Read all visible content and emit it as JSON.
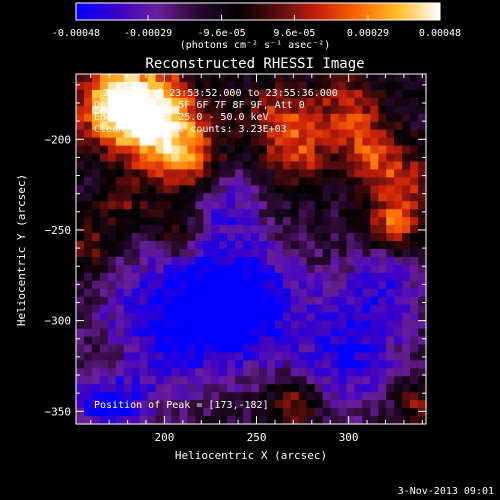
{
  "colorbar": {
    "tick_labels": [
      "-0.00048",
      "-0.00029",
      "-9.6e-05",
      "9.6e-05",
      "0.00029",
      "0.00048"
    ],
    "tick_values": [
      -0.00048,
      -0.00029,
      -9.6e-05,
      9.6e-05,
      0.00029,
      0.00048
    ],
    "range": [
      -0.00048,
      0.00048
    ],
    "unit_label": "(photons cm⁻² s⁻¹ asec⁻²)",
    "colormap": [
      "#0000ff",
      "#3a00c8",
      "#6a1e9c",
      "#2a0a30",
      "#000000",
      "#5a0d0d",
      "#c8200a",
      "#ff6a00",
      "#ffc030",
      "#ffffff"
    ]
  },
  "chart_data": {
    "type": "heatmap",
    "title": "Reconstructed RHESSI Image",
    "xlabel": "Heliocentric X (arcsec)",
    "ylabel": "Heliocentric Y (arcsec)",
    "xlim": [
      152,
      342
    ],
    "ylim": [
      -357,
      -164
    ],
    "xticks": [
      200,
      250,
      300
    ],
    "yticks": [
      -200,
      -250,
      -300,
      -350
    ],
    "annotations": [
      "2-Nov-2013 23:53:52.000 to 23:55:36.000",
      "Detectors: 3F 5F 6F 7F 8F 9F, Att 0",
      "Energy Range: 25.0 - 50.0 keV",
      "Clean     Total counts: 3.23E+03"
    ],
    "peak_label": "Position of Peak = [173,-182]",
    "peak_position": [
      173,
      -182
    ],
    "bright_sources": [
      {
        "x": 173,
        "y": -182,
        "level": 1.0,
        "sigma": 14
      },
      {
        "x": 200,
        "y": -197,
        "level": 0.85,
        "sigma": 16
      },
      {
        "x": 190,
        "y": -178,
        "level": 0.7,
        "sigma": 18
      },
      {
        "x": 216,
        "y": -215,
        "level": 0.55,
        "sigma": 12
      },
      {
        "x": 263,
        "y": -190,
        "level": 0.6,
        "sigma": 14
      },
      {
        "x": 300,
        "y": -182,
        "level": 0.55,
        "sigma": 12
      },
      {
        "x": 312,
        "y": -207,
        "level": 0.6,
        "sigma": 12
      },
      {
        "x": 325,
        "y": -248,
        "level": 0.75,
        "sigma": 10
      },
      {
        "x": 330,
        "y": -225,
        "level": 0.55,
        "sigma": 12
      },
      {
        "x": 275,
        "y": -210,
        "level": 0.45,
        "sigma": 12
      },
      {
        "x": 208,
        "y": -250,
        "level": 0.5,
        "sigma": 10
      },
      {
        "x": 160,
        "y": -260,
        "level": 0.4,
        "sigma": 10
      },
      {
        "x": 178,
        "y": -235,
        "level": 0.35,
        "sigma": 10
      },
      {
        "x": 270,
        "y": -345,
        "level": 0.55,
        "sigma": 10
      },
      {
        "x": 335,
        "y": -345,
        "level": 0.5,
        "sigma": 8
      },
      {
        "x": 170,
        "y": -325,
        "level": 0.3,
        "sigma": 9
      }
    ],
    "dim_regions": [
      {
        "x": 240,
        "y": -290,
        "level": -0.8,
        "sigma": 25
      },
      {
        "x": 200,
        "y": -300,
        "level": -0.6,
        "sigma": 28
      },
      {
        "x": 300,
        "y": -320,
        "level": -0.6,
        "sigma": 22
      },
      {
        "x": 170,
        "y": -345,
        "level": -0.7,
        "sigma": 15
      },
      {
        "x": 320,
        "y": -280,
        "level": -0.5,
        "sigma": 18
      },
      {
        "x": 230,
        "y": -235,
        "level": -0.45,
        "sigma": 15
      }
    ]
  },
  "footer": {
    "timestamp": "3-Nov-2013 09:01"
  }
}
